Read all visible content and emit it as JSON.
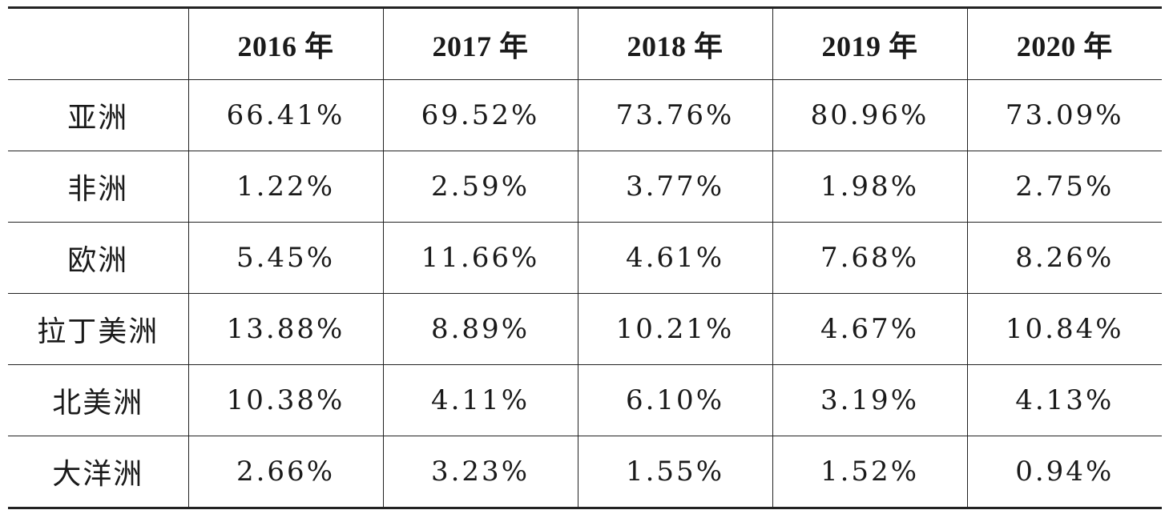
{
  "table": {
    "corner": "",
    "headers": [
      "2016 年",
      "2017 年",
      "2018 年",
      "2019 年",
      "2020 年"
    ],
    "rows": [
      {
        "region": "亚洲",
        "values": [
          "66.41%",
          "69.52%",
          "73.76%",
          "80.96%",
          "73.09%"
        ]
      },
      {
        "region": "非洲",
        "values": [
          "1.22%",
          "2.59%",
          "3.77%",
          "1.98%",
          "2.75%"
        ]
      },
      {
        "region": "欧洲",
        "values": [
          "5.45%",
          "11.66%",
          "4.61%",
          "7.68%",
          "8.26%"
        ]
      },
      {
        "region": "拉丁美洲",
        "values": [
          "13.88%",
          "8.89%",
          "10.21%",
          "4.67%",
          "10.84%"
        ]
      },
      {
        "region": "北美洲",
        "values": [
          "10.38%",
          "4.11%",
          "6.10%",
          "3.19%",
          "4.13%"
        ]
      },
      {
        "region": "大洋洲",
        "values": [
          "2.66%",
          "3.23%",
          "1.55%",
          "1.52%",
          "0.94%"
        ]
      }
    ]
  }
}
